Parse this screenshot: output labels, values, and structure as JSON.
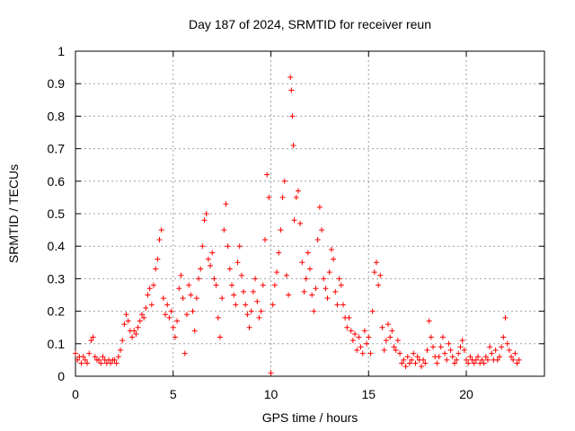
{
  "chart_data": {
    "type": "scatter",
    "title": "Day 187 of 2024, SRMTID for receiver reun",
    "xlabel": "GPS time / hours",
    "ylabel": "SRMTID / TECUs",
    "xlim": [
      0,
      24
    ],
    "ylim": [
      0,
      1
    ],
    "xticks": [
      "0",
      "5",
      "10",
      "15",
      "20"
    ],
    "xtick_values": [
      0,
      5,
      10,
      15,
      20
    ],
    "yticks": [
      "0",
      "0.1",
      "0.2",
      "0.3",
      "0.4",
      "0.5",
      "0.6",
      "0.7",
      "0.8",
      "0.9",
      "1"
    ],
    "ytick_values": [
      0,
      0.1,
      0.2,
      0.3,
      0.4,
      0.5,
      0.6,
      0.7,
      0.8,
      0.9,
      1
    ],
    "grid": true,
    "marker": "+",
    "color": "#ff0000",
    "series": [
      {
        "name": "reun",
        "points": [
          [
            0.0,
            0.07
          ],
          [
            0.1,
            0.05
          ],
          [
            0.2,
            0.06
          ],
          [
            0.3,
            0.04
          ],
          [
            0.4,
            0.06
          ],
          [
            0.5,
            0.05
          ],
          [
            0.6,
            0.04
          ],
          [
            0.7,
            0.07
          ],
          [
            0.8,
            0.11
          ],
          [
            0.9,
            0.12
          ],
          [
            1.0,
            0.06
          ],
          [
            1.1,
            0.05
          ],
          [
            1.2,
            0.05
          ],
          [
            1.3,
            0.04
          ],
          [
            1.4,
            0.06
          ],
          [
            1.5,
            0.05
          ],
          [
            1.6,
            0.04
          ],
          [
            1.7,
            0.05
          ],
          [
            1.8,
            0.04
          ],
          [
            1.9,
            0.05
          ],
          [
            2.0,
            0.05
          ],
          [
            2.1,
            0.04
          ],
          [
            2.2,
            0.06
          ],
          [
            2.3,
            0.08
          ],
          [
            2.4,
            0.11
          ],
          [
            2.5,
            0.16
          ],
          [
            2.6,
            0.19
          ],
          [
            2.7,
            0.17
          ],
          [
            2.8,
            0.14
          ],
          [
            2.9,
            0.12
          ],
          [
            3.0,
            0.14
          ],
          [
            3.1,
            0.13
          ],
          [
            3.2,
            0.15
          ],
          [
            3.3,
            0.17
          ],
          [
            3.4,
            0.19
          ],
          [
            3.5,
            0.18
          ],
          [
            3.6,
            0.21
          ],
          [
            3.7,
            0.25
          ],
          [
            3.8,
            0.27
          ],
          [
            3.9,
            0.22
          ],
          [
            4.0,
            0.28
          ],
          [
            4.1,
            0.33
          ],
          [
            4.2,
            0.36
          ],
          [
            4.3,
            0.42
          ],
          [
            4.4,
            0.45
          ],
          [
            4.5,
            0.24
          ],
          [
            4.6,
            0.19
          ],
          [
            4.7,
            0.22
          ],
          [
            4.8,
            0.18
          ],
          [
            4.9,
            0.2
          ],
          [
            5.0,
            0.15
          ],
          [
            5.1,
            0.12
          ],
          [
            5.2,
            0.17
          ],
          [
            5.3,
            0.27
          ],
          [
            5.4,
            0.31
          ],
          [
            5.5,
            0.24
          ],
          [
            5.6,
            0.07
          ],
          [
            5.7,
            0.19
          ],
          [
            5.8,
            0.28
          ],
          [
            5.9,
            0.25
          ],
          [
            6.0,
            0.2
          ],
          [
            6.1,
            0.14
          ],
          [
            6.2,
            0.24
          ],
          [
            6.3,
            0.3
          ],
          [
            6.4,
            0.33
          ],
          [
            6.5,
            0.4
          ],
          [
            6.6,
            0.48
          ],
          [
            6.7,
            0.5
          ],
          [
            6.8,
            0.36
          ],
          [
            6.9,
            0.34
          ],
          [
            7.0,
            0.38
          ],
          [
            7.1,
            0.3
          ],
          [
            7.2,
            0.28
          ],
          [
            7.3,
            0.18
          ],
          [
            7.4,
            0.12
          ],
          [
            7.5,
            0.24
          ],
          [
            7.6,
            0.45
          ],
          [
            7.7,
            0.53
          ],
          [
            7.8,
            0.4
          ],
          [
            7.9,
            0.33
          ],
          [
            8.0,
            0.28
          ],
          [
            8.1,
            0.25
          ],
          [
            8.2,
            0.22
          ],
          [
            8.3,
            0.35
          ],
          [
            8.4,
            0.4
          ],
          [
            8.5,
            0.31
          ],
          [
            8.6,
            0.26
          ],
          [
            8.7,
            0.22
          ],
          [
            8.8,
            0.19
          ],
          [
            8.9,
            0.15
          ],
          [
            9.0,
            0.2
          ],
          [
            9.1,
            0.26
          ],
          [
            9.2,
            0.3
          ],
          [
            9.3,
            0.23
          ],
          [
            9.4,
            0.18
          ],
          [
            9.5,
            0.2
          ],
          [
            9.6,
            0.28
          ],
          [
            9.7,
            0.42
          ],
          [
            9.8,
            0.62
          ],
          [
            9.9,
            0.55
          ],
          [
            10.0,
            0.01
          ],
          [
            10.1,
            0.22
          ],
          [
            10.2,
            0.28
          ],
          [
            10.3,
            0.32
          ],
          [
            10.4,
            0.38
          ],
          [
            10.5,
            0.45
          ],
          [
            10.6,
            0.55
          ],
          [
            10.7,
            0.6
          ],
          [
            10.8,
            0.31
          ],
          [
            10.9,
            0.25
          ],
          [
            11.0,
            0.92
          ],
          [
            11.05,
            0.88
          ],
          [
            11.1,
            0.8
          ],
          [
            11.15,
            0.71
          ],
          [
            11.2,
            0.48
          ],
          [
            11.3,
            0.55
          ],
          [
            11.4,
            0.57
          ],
          [
            11.5,
            0.47
          ],
          [
            11.6,
            0.35
          ],
          [
            11.7,
            0.26
          ],
          [
            11.8,
            0.3
          ],
          [
            11.9,
            0.38
          ],
          [
            12.0,
            0.33
          ],
          [
            12.1,
            0.25
          ],
          [
            12.2,
            0.2
          ],
          [
            12.3,
            0.27
          ],
          [
            12.4,
            0.42
          ],
          [
            12.5,
            0.52
          ],
          [
            12.6,
            0.45
          ],
          [
            12.7,
            0.3
          ],
          [
            12.8,
            0.27
          ],
          [
            12.9,
            0.24
          ],
          [
            13.0,
            0.32
          ],
          [
            13.1,
            0.39
          ],
          [
            13.2,
            0.36
          ],
          [
            13.3,
            0.26
          ],
          [
            13.4,
            0.22
          ],
          [
            13.5,
            0.3
          ],
          [
            13.6,
            0.28
          ],
          [
            13.7,
            0.22
          ],
          [
            13.8,
            0.18
          ],
          [
            13.9,
            0.15
          ],
          [
            14.0,
            0.18
          ],
          [
            14.1,
            0.14
          ],
          [
            14.2,
            0.11
          ],
          [
            14.3,
            0.13
          ],
          [
            14.4,
            0.08
          ],
          [
            14.5,
            0.12
          ],
          [
            14.6,
            0.09
          ],
          [
            14.7,
            0.07
          ],
          [
            14.8,
            0.14
          ],
          [
            14.9,
            0.1
          ],
          [
            15.0,
            0.12
          ],
          [
            15.1,
            0.07
          ],
          [
            15.2,
            0.2
          ],
          [
            15.3,
            0.32
          ],
          [
            15.4,
            0.35
          ],
          [
            15.5,
            0.28
          ],
          [
            15.6,
            0.31
          ],
          [
            15.7,
            0.15
          ],
          [
            15.8,
            0.08
          ],
          [
            15.9,
            0.11
          ],
          [
            16.0,
            0.16
          ],
          [
            16.1,
            0.12
          ],
          [
            16.2,
            0.14
          ],
          [
            16.3,
            0.09
          ],
          [
            16.4,
            0.08
          ],
          [
            16.5,
            0.11
          ],
          [
            16.6,
            0.07
          ],
          [
            16.7,
            0.04
          ],
          [
            16.8,
            0.05
          ],
          [
            16.9,
            0.03
          ],
          [
            17.0,
            0.06
          ],
          [
            17.1,
            0.04
          ],
          [
            17.2,
            0.05
          ],
          [
            17.3,
            0.07
          ],
          [
            17.4,
            0.04
          ],
          [
            17.5,
            0.06
          ],
          [
            17.6,
            0.05
          ],
          [
            17.7,
            0.03
          ],
          [
            17.8,
            0.05
          ],
          [
            17.9,
            0.04
          ],
          [
            18.0,
            0.08
          ],
          [
            18.1,
            0.17
          ],
          [
            18.2,
            0.12
          ],
          [
            18.3,
            0.09
          ],
          [
            18.4,
            0.06
          ],
          [
            18.5,
            0.04
          ],
          [
            18.6,
            0.06
          ],
          [
            18.7,
            0.09
          ],
          [
            18.8,
            0.12
          ],
          [
            18.9,
            0.07
          ],
          [
            19.0,
            0.05
          ],
          [
            19.1,
            0.1
          ],
          [
            19.2,
            0.08
          ],
          [
            19.3,
            0.06
          ],
          [
            19.4,
            0.04
          ],
          [
            19.5,
            0.05
          ],
          [
            19.6,
            0.07
          ],
          [
            19.7,
            0.09
          ],
          [
            19.8,
            0.11
          ],
          [
            19.9,
            0.08
          ],
          [
            20.0,
            0.05
          ],
          [
            20.1,
            0.04
          ],
          [
            20.2,
            0.06
          ],
          [
            20.3,
            0.05
          ],
          [
            20.4,
            0.04
          ],
          [
            20.5,
            0.05
          ],
          [
            20.6,
            0.06
          ],
          [
            20.7,
            0.04
          ],
          [
            20.8,
            0.05
          ],
          [
            20.9,
            0.04
          ],
          [
            21.0,
            0.06
          ],
          [
            21.1,
            0.05
          ],
          [
            21.2,
            0.09
          ],
          [
            21.3,
            0.07
          ],
          [
            21.4,
            0.05
          ],
          [
            21.5,
            0.08
          ],
          [
            21.6,
            0.05
          ],
          [
            21.7,
            0.06
          ],
          [
            21.8,
            0.09
          ],
          [
            21.9,
            0.12
          ],
          [
            22.0,
            0.18
          ],
          [
            22.1,
            0.1
          ],
          [
            22.2,
            0.08
          ],
          [
            22.3,
            0.06
          ],
          [
            22.4,
            0.05
          ],
          [
            22.5,
            0.07
          ],
          [
            22.6,
            0.04
          ],
          [
            22.7,
            0.05
          ]
        ]
      }
    ]
  }
}
